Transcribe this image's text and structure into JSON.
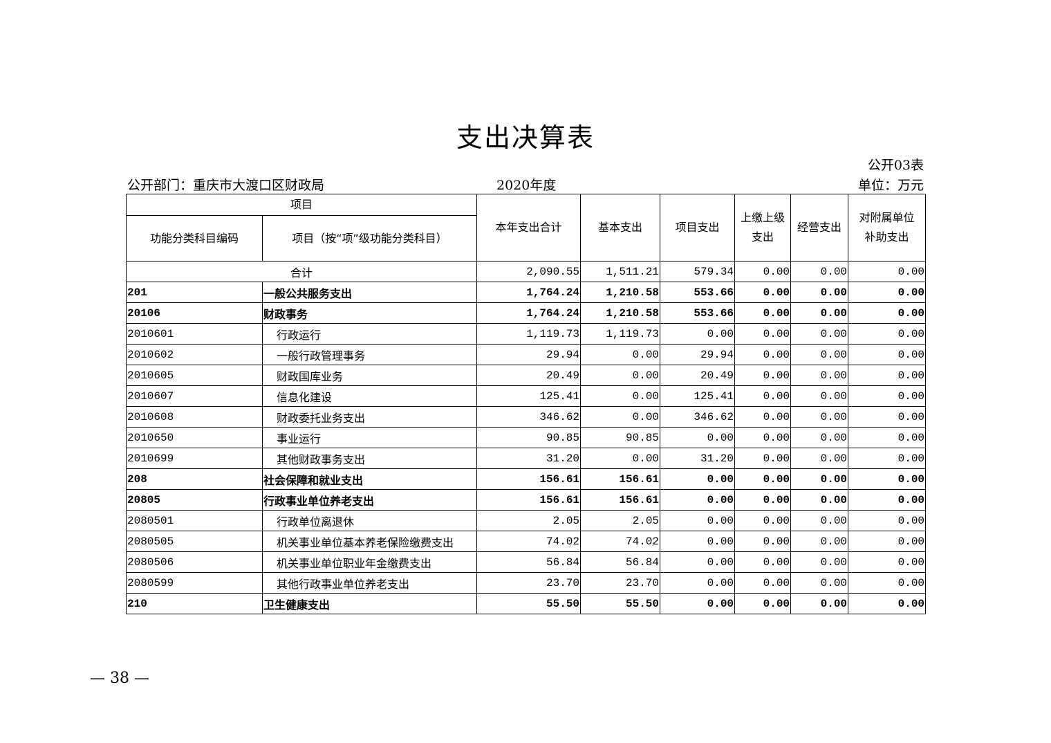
{
  "title": "支出决算表",
  "form_no": "公开03表",
  "department": "公开部门：重庆市大渡口区财政局",
  "year": "2020年度",
  "unit": "单位：万元",
  "headers": {
    "item_group": "项目",
    "code": "功能分类科目编码",
    "name": "项目（按“项”级功能分类科目）",
    "total": "本年支出合计",
    "basic": "基本支出",
    "project": "项目支出",
    "upper": "上缴上级支出",
    "business": "经营支出",
    "subsidy": "对附属单位补助支出"
  },
  "rows": [
    {
      "level": "total",
      "code": "",
      "name": "合计",
      "values": [
        "2,090.55",
        "1,511.21",
        "579.34",
        "0.00",
        "0.00",
        "0.00"
      ]
    },
    {
      "level": "1",
      "code": "201",
      "name": "一般公共服务支出",
      "values": [
        "1,764.24",
        "1,210.58",
        "553.66",
        "0.00",
        "0.00",
        "0.00"
      ]
    },
    {
      "level": "2",
      "code": "20106",
      "name": "财政事务",
      "values": [
        "1,764.24",
        "1,210.58",
        "553.66",
        "0.00",
        "0.00",
        "0.00"
      ]
    },
    {
      "level": "3",
      "code": "2010601",
      "name": "行政运行",
      "values": [
        "1,119.73",
        "1,119.73",
        "0.00",
        "0.00",
        "0.00",
        "0.00"
      ]
    },
    {
      "level": "3",
      "code": "2010602",
      "name": "一般行政管理事务",
      "values": [
        "29.94",
        "0.00",
        "29.94",
        "0.00",
        "0.00",
        "0.00"
      ]
    },
    {
      "level": "3",
      "code": "2010605",
      "name": "财政国库业务",
      "values": [
        "20.49",
        "0.00",
        "20.49",
        "0.00",
        "0.00",
        "0.00"
      ]
    },
    {
      "level": "3",
      "code": "2010607",
      "name": "信息化建设",
      "values": [
        "125.41",
        "0.00",
        "125.41",
        "0.00",
        "0.00",
        "0.00"
      ]
    },
    {
      "level": "3",
      "code": "2010608",
      "name": "财政委托业务支出",
      "values": [
        "346.62",
        "0.00",
        "346.62",
        "0.00",
        "0.00",
        "0.00"
      ]
    },
    {
      "level": "3",
      "code": "2010650",
      "name": "事业运行",
      "values": [
        "90.85",
        "90.85",
        "0.00",
        "0.00",
        "0.00",
        "0.00"
      ]
    },
    {
      "level": "3",
      "code": "2010699",
      "name": "其他财政事务支出",
      "values": [
        "31.20",
        "0.00",
        "31.20",
        "0.00",
        "0.00",
        "0.00"
      ]
    },
    {
      "level": "1",
      "code": "208",
      "name": "社会保障和就业支出",
      "values": [
        "156.61",
        "156.61",
        "0.00",
        "0.00",
        "0.00",
        "0.00"
      ]
    },
    {
      "level": "2",
      "code": "20805",
      "name": "行政事业单位养老支出",
      "values": [
        "156.61",
        "156.61",
        "0.00",
        "0.00",
        "0.00",
        "0.00"
      ]
    },
    {
      "level": "3",
      "code": "2080501",
      "name": "行政单位离退休",
      "values": [
        "2.05",
        "2.05",
        "0.00",
        "0.00",
        "0.00",
        "0.00"
      ]
    },
    {
      "level": "3",
      "code": "2080505",
      "name": "机关事业单位基本养老保险缴费支出",
      "values": [
        "74.02",
        "74.02",
        "0.00",
        "0.00",
        "0.00",
        "0.00"
      ]
    },
    {
      "level": "3",
      "code": "2080506",
      "name": "机关事业单位职业年金缴费支出",
      "values": [
        "56.84",
        "56.84",
        "0.00",
        "0.00",
        "0.00",
        "0.00"
      ]
    },
    {
      "level": "3",
      "code": "2080599",
      "name": "其他行政事业单位养老支出",
      "values": [
        "23.70",
        "23.70",
        "0.00",
        "0.00",
        "0.00",
        "0.00"
      ]
    },
    {
      "level": "1",
      "code": "210",
      "name": "卫生健康支出",
      "values": [
        "55.50",
        "55.50",
        "0.00",
        "0.00",
        "0.00",
        "0.00"
      ]
    }
  ],
  "page_number": "— 38 —"
}
